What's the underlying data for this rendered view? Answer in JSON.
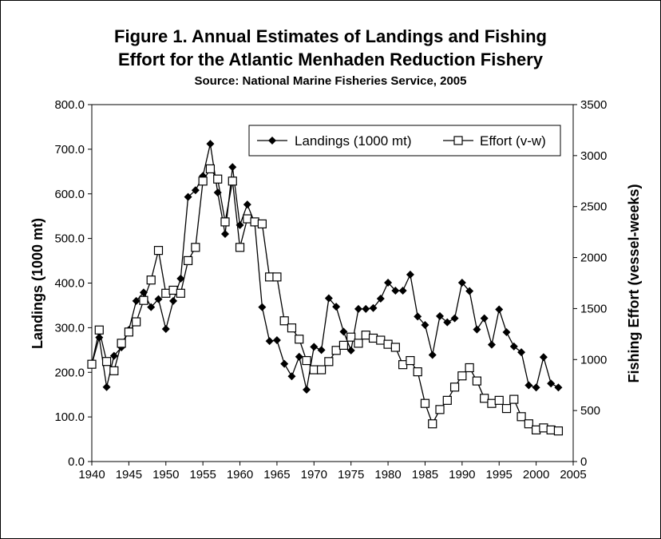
{
  "chart_data": {
    "type": "line",
    "title_line1": "Figure 1. Annual Estimates of Landings and Fishing",
    "title_line2": "Effort for the Atlantic Menhaden Reduction Fishery",
    "subtitle": "Source: National Marine Fisheries Service, 2005",
    "ylabel": "Landings (1000 mt)",
    "y2label": "Fishing Effort (vessel-weeks)",
    "xlim": [
      1940,
      2005
    ],
    "ylim": [
      0,
      800
    ],
    "y2lim": [
      0,
      3500
    ],
    "x_ticks": [
      "1940",
      "1945",
      "1950",
      "1955",
      "1960",
      "1965",
      "1970",
      "1975",
      "1980",
      "1985",
      "1990",
      "1995",
      "2000",
      "2005"
    ],
    "y_ticks": [
      "0.0",
      "100.0",
      "200.0",
      "300.0",
      "400.0",
      "500.0",
      "600.0",
      "700.0",
      "800.0"
    ],
    "y2_ticks": [
      "0",
      "500",
      "1000",
      "1500",
      "2000",
      "2500",
      "3000",
      "3500"
    ],
    "grid": false,
    "legend_position": "top-right",
    "x": [
      1940,
      1941,
      1942,
      1943,
      1944,
      1945,
      1946,
      1947,
      1948,
      1949,
      1950,
      1951,
      1952,
      1953,
      1954,
      1955,
      1956,
      1957,
      1958,
      1959,
      1960,
      1961,
      1962,
      1963,
      1964,
      1965,
      1966,
      1967,
      1968,
      1969,
      1970,
      1971,
      1972,
      1973,
      1974,
      1975,
      1976,
      1977,
      1978,
      1979,
      1980,
      1981,
      1982,
      1983,
      1984,
      1985,
      1986,
      1987,
      1988,
      1989,
      1990,
      1991,
      1992,
      1993,
      1994,
      1995,
      1996,
      1997,
      1998,
      1999,
      2000,
      2001,
      2002,
      2003
    ],
    "series": [
      {
        "name": "Landings (1000 mt)",
        "axis": "left",
        "marker": "diamond",
        "color": "#000000",
        "values": [
          218,
          278,
          167,
          237,
          256,
          295,
          360,
          379,
          346,
          364,
          297,
          360,
          410,
          593,
          608,
          640,
          712,
          603,
          510,
          660,
          530,
          576,
          535,
          346,
          270,
          272,
          219,
          191,
          235,
          161,
          257,
          250,
          366,
          347,
          291,
          249,
          342,
          342,
          344,
          365,
          401,
          383,
          383,
          419,
          325,
          306,
          239,
          326,
          312,
          321,
          401,
          382,
          296,
          321,
          262,
          341,
          290,
          258,
          245,
          171,
          166,
          234,
          175,
          166
        ]
      },
      {
        "name": "Effort (v-w)",
        "axis": "right",
        "marker": "square",
        "color": "#000000",
        "values": [
          954,
          1290,
          981,
          890,
          1160,
          1270,
          1370,
          1580,
          1780,
          2070,
          1650,
          1680,
          1650,
          1970,
          2100,
          2750,
          2870,
          2770,
          2350,
          2750,
          2100,
          2380,
          2350,
          2330,
          1810,
          1810,
          1380,
          1310,
          1200,
          990,
          900,
          900,
          980,
          1090,
          1140,
          1220,
          1160,
          1240,
          1210,
          1190,
          1150,
          1120,
          950,
          990,
          880,
          570,
          370,
          510,
          600,
          730,
          840,
          920,
          790,
          620,
          570,
          600,
          520,
          610,
          440,
          370,
          310,
          330,
          310,
          300
        ]
      }
    ]
  }
}
